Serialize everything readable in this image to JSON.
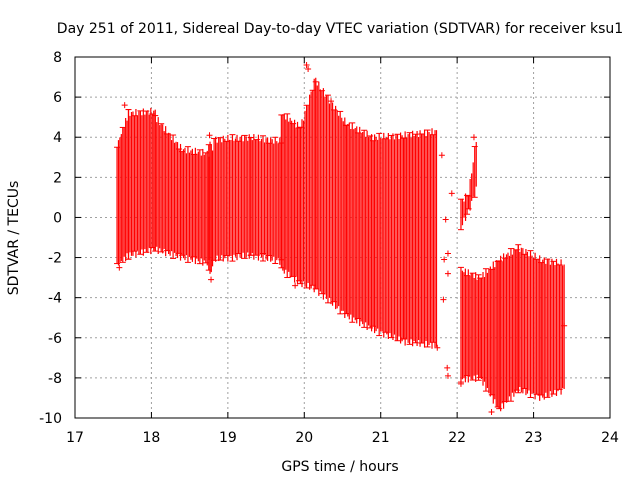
{
  "chart_data": {
    "type": "scatter",
    "title": "Day 251 of 2011, Sidereal Day-to-day VTEC variation (SDTVAR) for receiver ksu1",
    "xlabel": "GPS time / hours",
    "ylabel": "SDTVAR / TECUs",
    "xlim": [
      17,
      24
    ],
    "ylim": [
      -10,
      8
    ],
    "xticks": [
      17,
      18,
      19,
      20,
      21,
      22,
      23,
      24
    ],
    "yticks": [
      -10,
      -8,
      -6,
      -4,
      -2,
      0,
      2,
      4,
      6,
      8
    ],
    "grid": true,
    "series": [
      {
        "name": "SDTVAR",
        "color": "#ff0000",
        "style": "errorbars",
        "bands": [
          {
            "x": [
              17.55,
              17.7
            ],
            "top": [
              3.6,
              5.2
            ],
            "bottom": [
              -2.4,
              -1.9
            ]
          },
          {
            "x": [
              17.7,
              18.05
            ],
            "top": [
              5.2,
              5.3
            ],
            "bottom": [
              -1.9,
              -1.6
            ]
          },
          {
            "x": [
              18.05,
              18.4
            ],
            "top": [
              5.0,
              3.4
            ],
            "bottom": [
              -1.6,
              -2.0
            ]
          },
          {
            "x": [
              18.4,
              18.75
            ],
            "top": [
              3.4,
              3.2
            ],
            "bottom": [
              -2.0,
              -2.3
            ]
          },
          {
            "x": [
              18.75,
              18.8
            ],
            "top": [
              3.8,
              3.5
            ],
            "bottom": [
              -2.8,
              -2.6
            ]
          },
          {
            "x": [
              18.82,
              19.3
            ],
            "top": [
              3.9,
              4.0
            ],
            "bottom": [
              -2.1,
              -1.9
            ]
          },
          {
            "x": [
              19.3,
              19.7
            ],
            "top": [
              4.0,
              3.8
            ],
            "bottom": [
              -1.9,
              -2.2
            ]
          },
          {
            "x": [
              19.7,
              19.95
            ],
            "top": [
              5.2,
              4.5
            ],
            "bottom": [
              -2.6,
              -3.3
            ]
          },
          {
            "x": [
              19.95,
              20.15
            ],
            "top": [
              4.5,
              7.0
            ],
            "bottom": [
              -3.3,
              -3.6
            ]
          },
          {
            "x": [
              20.15,
              20.55
            ],
            "top": [
              6.8,
              4.7
            ],
            "bottom": [
              -3.6,
              -4.9
            ]
          },
          {
            "x": [
              20.55,
              20.9
            ],
            "top": [
              4.7,
              4.0
            ],
            "bottom": [
              -4.9,
              -5.6
            ]
          },
          {
            "x": [
              20.9,
              21.3
            ],
            "top": [
              4.0,
              4.1
            ],
            "bottom": [
              -5.6,
              -6.2
            ]
          },
          {
            "x": [
              21.3,
              21.73
            ],
            "top": [
              4.1,
              4.3
            ],
            "bottom": [
              -6.2,
              -6.4
            ]
          },
          {
            "x": [
              22.05,
              22.15
            ],
            "top": [
              0.8,
              1.2
            ],
            "bottom": [
              -0.5,
              0.3
            ]
          },
          {
            "x": [
              22.15,
              22.25
            ],
            "top": [
              1.2,
              3.9
            ],
            "bottom": [
              0.3,
              1.4
            ]
          },
          {
            "x": [
              22.05,
              22.3
            ],
            "top": [
              -2.6,
              -3.0
            ],
            "bottom": [
              -8.1,
              -8.0
            ]
          },
          {
            "x": [
              22.3,
              22.55
            ],
            "top": [
              -3.0,
              -2.1
            ],
            "bottom": [
              -8.0,
              -9.6
            ]
          },
          {
            "x": [
              22.55,
              22.8
            ],
            "top": [
              -2.1,
              -1.5
            ],
            "bottom": [
              -9.6,
              -8.6
            ]
          },
          {
            "x": [
              22.8,
              23.1
            ],
            "top": [
              -1.5,
              -2.1
            ],
            "bottom": [
              -8.6,
              -9.0
            ]
          },
          {
            "x": [
              23.1,
              23.4
            ],
            "top": [
              -2.1,
              -2.3
            ],
            "bottom": [
              -9.0,
              -8.6
            ]
          }
        ],
        "outliers": [
          [
            17.58,
            -2.5
          ],
          [
            17.65,
            5.6
          ],
          [
            18.78,
            -3.1
          ],
          [
            18.76,
            4.1
          ],
          [
            19.46,
            -1.8
          ],
          [
            19.88,
            -3.4
          ],
          [
            20.03,
            7.6
          ],
          [
            20.05,
            7.4
          ],
          [
            20.35,
            5.8
          ],
          [
            21.74,
            -6.5
          ],
          [
            21.8,
            3.1
          ],
          [
            21.82,
            -4.1
          ],
          [
            21.83,
            -2.1
          ],
          [
            21.85,
            -0.1
          ],
          [
            21.88,
            -1.8
          ],
          [
            21.88,
            -2.8
          ],
          [
            21.93,
            1.2
          ],
          [
            21.87,
            -7.5
          ],
          [
            21.88,
            -7.9
          ],
          [
            22.05,
            -8.3
          ],
          [
            22.22,
            4.0
          ],
          [
            22.45,
            -9.7
          ],
          [
            23.4,
            -5.4
          ]
        ]
      }
    ]
  }
}
